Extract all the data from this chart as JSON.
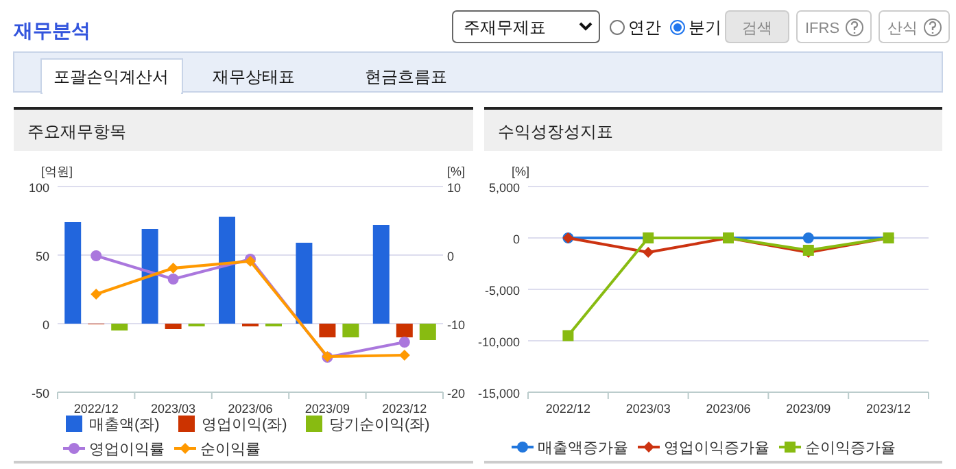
{
  "chart_data": [
    {
      "type": "other",
      "title": "재무분석",
      "annotations": [
        "주재무제표",
        "연간",
        "분기",
        "검색",
        "IFRS",
        "산식",
        "포괄손익계산서",
        "재무상태표",
        "현금흐름표"
      ]
    },
    {
      "type": "bar",
      "title": "주요재무항목",
      "ylabel": "[억원]",
      "y2label": "[%]",
      "categories": [
        "2022/12",
        "2023/03",
        "2023/06",
        "2023/09",
        "2023/12"
      ],
      "ylim": [
        -50,
        100
      ],
      "yticks": [
        -50,
        0,
        50,
        100
      ],
      "y2lim": [
        -20,
        10
      ],
      "y2ticks": [
        -20,
        -10,
        0,
        10
      ],
      "grid": "y",
      "legend": "bottom",
      "series": [
        {
          "name": "매출액(좌)",
          "color": "#2266dd",
          "values": [
            74,
            69,
            78,
            59,
            72
          ]
        },
        {
          "name": "영업이익(좌)",
          "color": "#cc3300",
          "values": [
            0,
            -4,
            -2,
            -10,
            -10
          ]
        },
        {
          "name": "당기순이익(좌)",
          "color": "#88bb11",
          "values": [
            -5,
            -2,
            -2,
            -10,
            -12
          ]
        },
        {
          "name": "영업이익률",
          "type": "line",
          "axis": "y2",
          "marker": "circle",
          "color": "#aa77dd",
          "values": [
            -0.1,
            -3.5,
            -0.6,
            -14.9,
            -12.7
          ]
        },
        {
          "name": "순이익률",
          "type": "line",
          "axis": "y2",
          "marker": "diamond",
          "color": "#ff9900",
          "values": [
            -5.7,
            -1.9,
            -0.9,
            -14.8,
            -14.6
          ]
        }
      ]
    },
    {
      "type": "line",
      "title": "수익성장성지표",
      "ylabel": "[%]",
      "categories": [
        "2022/12",
        "2023/03",
        "2023/06",
        "2023/09",
        "2023/12"
      ],
      "ylim": [
        -15000,
        5000
      ],
      "yticks": [
        {
          "value": -15000,
          "label": "-15,000"
        },
        {
          "value": -10000,
          "label": "-10,000"
        },
        {
          "value": -5000,
          "label": "-5,000"
        },
        0,
        {
          "value": 5000,
          "label": "5,000"
        }
      ],
      "grid": "y",
      "legend": "bottom",
      "series": [
        {
          "name": "매출액증가율",
          "marker": "circle",
          "color": "#2277dd",
          "values": [
            0,
            0,
            0,
            0,
            0
          ]
        },
        {
          "name": "영업이익증가율",
          "marker": "diamond",
          "color": "#cc3311",
          "values": [
            0,
            -1400,
            0,
            -1400,
            0
          ]
        },
        {
          "name": "순이익증가율",
          "marker": "square",
          "color": "#88bb11",
          "values": [
            -9500,
            0,
            0,
            -1200,
            0
          ]
        }
      ]
    }
  ]
}
